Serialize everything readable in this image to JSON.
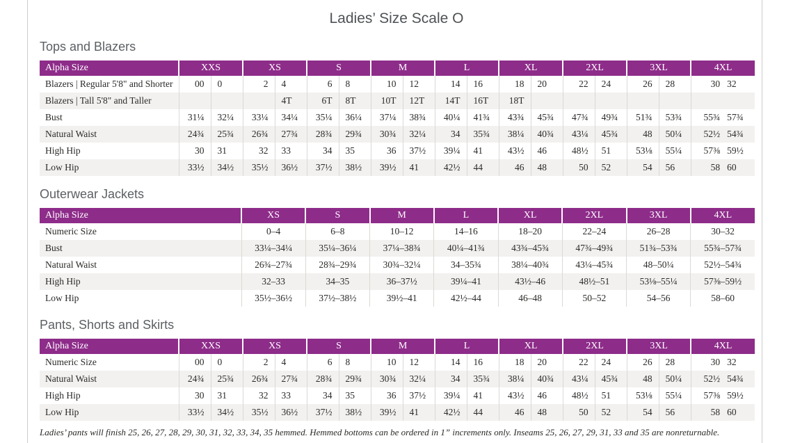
{
  "page": {
    "title": "Ladies’ Size Scale O",
    "footnote": "Ladies’ pants will finish 25, 26, 27, 28, 29, 30, 31, 32, 33, 34, 35 hemmed. Hemmed bottoms can be ordered in 1” increments only. Inseams 25, 26, 27, 29, 31, 33 and 35 are nonreturnable."
  },
  "colors": {
    "header_bg": "#8e2c8a",
    "stripe": "#f2f1ef",
    "heading_text": "#5c6063"
  },
  "tables": [
    {
      "section": "Tops and Blazers",
      "header_label": "Alpha Size",
      "sizes": [
        "XXS",
        "XS",
        "S",
        "M",
        "L",
        "XL",
        "2XL",
        "3XL",
        "4XL"
      ],
      "paired": true,
      "rows": [
        {
          "label": "Blazers | Regular 5'8\" and Shorter",
          "values": [
            "00",
            "0",
            "2",
            "4",
            "6",
            "8",
            "10",
            "12",
            "14",
            "16",
            "18",
            "20",
            "22",
            "24",
            "26",
            "28",
            "30",
            "32"
          ]
        },
        {
          "label": "Blazers | Tall 5'8\" and Taller",
          "values": [
            "",
            "",
            "",
            "4T",
            "6T",
            "8T",
            "10T",
            "12T",
            "14T",
            "16T",
            "18T",
            "",
            "",
            "",
            "",
            "",
            "",
            ""
          ]
        },
        {
          "label": "Bust",
          "values": [
            "31¼",
            "32¼",
            "33¼",
            "34¼",
            "35¼",
            "36¼",
            "37¼",
            "38¾",
            "40¼",
            "41¾",
            "43¾",
            "45¾",
            "47¾",
            "49¾",
            "51¾",
            "53¾",
            "55¾",
            "57¾"
          ]
        },
        {
          "label": "Natural Waist",
          "values": [
            "24¾",
            "25¾",
            "26¾",
            "27¾",
            "28¾",
            "29¾",
            "30¾",
            "32¼",
            "34",
            "35¾",
            "38¼",
            "40¾",
            "43¼",
            "45¾",
            "48",
            "50¼",
            "52½",
            "54¾"
          ]
        },
        {
          "label": "High Hip",
          "values": [
            "30",
            "31",
            "32",
            "33",
            "34",
            "35",
            "36",
            "37½",
            "39¼",
            "41",
            "43½",
            "46",
            "48½",
            "51",
            "53⅛",
            "55¼",
            "57⅜",
            "59½"
          ]
        },
        {
          "label": "Low Hip",
          "values": [
            "33½",
            "34½",
            "35½",
            "36½",
            "37½",
            "38½",
            "39½",
            "41",
            "42½",
            "44",
            "46",
            "48",
            "50",
            "52",
            "54",
            "56",
            "58",
            "60"
          ]
        }
      ]
    },
    {
      "section": "Outerwear Jackets",
      "header_label": "Alpha Size",
      "sizes": [
        "XS",
        "S",
        "M",
        "L",
        "XL",
        "2XL",
        "3XL",
        "4XL"
      ],
      "paired": false,
      "rows": [
        {
          "label": "Numeric Size",
          "values": [
            "0–4",
            "6–8",
            "10–12",
            "14–16",
            "18–20",
            "22–24",
            "26–28",
            "30–32"
          ]
        },
        {
          "label": "Bust",
          "values": [
            "33¼–34¼",
            "35¼–36¼",
            "37¼–38¾",
            "40¼–41¾",
            "43¾–45¾",
            "47¾–49¾",
            "51¾–53¾",
            "55¾–57¾"
          ]
        },
        {
          "label": "Natural Waist",
          "values": [
            "26¾–27¾",
            "28¾–29¾",
            "30¾–32¼",
            "34–35¾",
            "38¼–40¾",
            "43¼–45¾",
            "48–50¼",
            "52½–54¾"
          ]
        },
        {
          "label": "High Hip",
          "values": [
            "32–33",
            "34–35",
            "36–37½",
            "39¼–41",
            "43½–46",
            "48½–51",
            "53⅛–55¼",
            "57⅜–59½"
          ]
        },
        {
          "label": "Low Hip",
          "values": [
            "35½–36½",
            "37½–38½",
            "39½–41",
            "42½–44",
            "46–48",
            "50–52",
            "54–56",
            "58–60"
          ]
        }
      ]
    },
    {
      "section": "Pants, Shorts and Skirts",
      "header_label": "Alpha Size",
      "sizes": [
        "XXS",
        "XS",
        "S",
        "M",
        "L",
        "XL",
        "2XL",
        "3XL",
        "4XL"
      ],
      "paired": true,
      "rows": [
        {
          "label": "Numeric Size",
          "values": [
            "00",
            "0",
            "2",
            "4",
            "6",
            "8",
            "10",
            "12",
            "14",
            "16",
            "18",
            "20",
            "22",
            "24",
            "26",
            "28",
            "30",
            "32"
          ]
        },
        {
          "label": "Natural Waist",
          "values": [
            "24¾",
            "25¾",
            "26¾",
            "27¾",
            "28¾",
            "29¾",
            "30¾",
            "32¼",
            "34",
            "35¾",
            "38¼",
            "40¾",
            "43¼",
            "45¾",
            "48",
            "50¼",
            "52½",
            "54¾"
          ]
        },
        {
          "label": "High Hip",
          "values": [
            "30",
            "31",
            "32",
            "33",
            "34",
            "35",
            "36",
            "37½",
            "39¼",
            "41",
            "43½",
            "46",
            "48½",
            "51",
            "53⅛",
            "55¼",
            "57⅜",
            "59½"
          ]
        },
        {
          "label": "Low Hip",
          "values": [
            "33½",
            "34½",
            "35½",
            "36½",
            "37½",
            "38½",
            "39½",
            "41",
            "42½",
            "44",
            "46",
            "48",
            "50",
            "52",
            "54",
            "56",
            "58",
            "60"
          ]
        }
      ]
    }
  ]
}
